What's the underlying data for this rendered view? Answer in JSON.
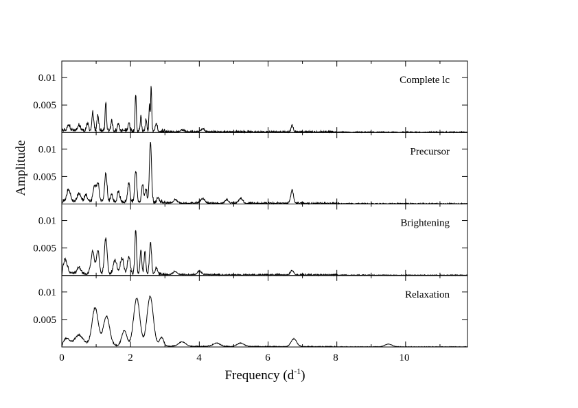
{
  "chart_data": {
    "type": "line",
    "xlabel": "Frequency (d",
    "xlabel_sup": "-1",
    "xlabel_close": ")",
    "ylabel": "Amplitude",
    "xlim": [
      0,
      11.8
    ],
    "ylim": [
      0,
      0.013
    ],
    "x_ticks": [
      0,
      2,
      4,
      6,
      8,
      10
    ],
    "x_tick_labels": [
      "0",
      "2",
      "4",
      "6",
      "8",
      "10"
    ],
    "y_ticks": [
      0.005,
      0.01
    ],
    "y_tick_labels": [
      "0.005",
      "0.01"
    ],
    "grid": false,
    "panels": [
      {
        "name": "Complete lc",
        "base": 0.0002,
        "noise": 0.0007,
        "peaks": [
          [
            0.2,
            0.001,
            0.04
          ],
          [
            0.5,
            0.0009,
            0.04
          ],
          [
            0.75,
            0.0012,
            0.03
          ],
          [
            0.9,
            0.0033,
            0.025
          ],
          [
            1.05,
            0.0028,
            0.025
          ],
          [
            1.28,
            0.0052,
            0.02
          ],
          [
            1.45,
            0.0018,
            0.025
          ],
          [
            1.65,
            0.0014,
            0.025
          ],
          [
            1.95,
            0.0014,
            0.025
          ],
          [
            2.15,
            0.0065,
            0.018
          ],
          [
            2.3,
            0.0025,
            0.02
          ],
          [
            2.45,
            0.0022,
            0.02
          ],
          [
            2.55,
            0.0048,
            0.015
          ],
          [
            2.6,
            0.0082,
            0.015
          ],
          [
            2.75,
            0.0015,
            0.025
          ],
          [
            3.5,
            0.0003,
            0.05
          ],
          [
            4.1,
            0.0005,
            0.05
          ],
          [
            6.7,
            0.0012,
            0.03
          ]
        ]
      },
      {
        "name": "Precursor",
        "base": 0.0003,
        "noise": 0.0007,
        "peaks": [
          [
            0.2,
            0.0022,
            0.05
          ],
          [
            0.5,
            0.0015,
            0.05
          ],
          [
            0.7,
            0.0012,
            0.04
          ],
          [
            0.95,
            0.003,
            0.04
          ],
          [
            1.05,
            0.0034,
            0.035
          ],
          [
            1.28,
            0.0052,
            0.035
          ],
          [
            1.45,
            0.0015,
            0.03
          ],
          [
            1.65,
            0.0018,
            0.035
          ],
          [
            1.95,
            0.0033,
            0.035
          ],
          [
            2.15,
            0.0057,
            0.03
          ],
          [
            2.35,
            0.0032,
            0.03
          ],
          [
            2.45,
            0.0025,
            0.025
          ],
          [
            2.58,
            0.0111,
            0.03
          ],
          [
            2.8,
            0.001,
            0.03
          ],
          [
            3.3,
            0.0006,
            0.05
          ],
          [
            4.1,
            0.0008,
            0.06
          ],
          [
            4.8,
            0.0006,
            0.05
          ],
          [
            5.2,
            0.0008,
            0.06
          ],
          [
            6.7,
            0.0023,
            0.04
          ]
        ]
      },
      {
        "name": "Brightening",
        "base": 0.0002,
        "noise": 0.0006,
        "peaks": [
          [
            0.1,
            0.0025,
            0.06
          ],
          [
            0.5,
            0.0012,
            0.05
          ],
          [
            0.9,
            0.004,
            0.05
          ],
          [
            1.05,
            0.0043,
            0.04
          ],
          [
            1.28,
            0.0064,
            0.04
          ],
          [
            1.55,
            0.0025,
            0.05
          ],
          [
            1.75,
            0.0028,
            0.05
          ],
          [
            1.95,
            0.0032,
            0.04
          ],
          [
            2.15,
            0.0081,
            0.025
          ],
          [
            2.3,
            0.0045,
            0.025
          ],
          [
            2.42,
            0.0043,
            0.025
          ],
          [
            2.58,
            0.0057,
            0.03
          ],
          [
            2.75,
            0.0012,
            0.03
          ],
          [
            3.3,
            0.0006,
            0.06
          ],
          [
            4.0,
            0.0006,
            0.06
          ],
          [
            6.7,
            0.0008,
            0.05
          ]
        ]
      },
      {
        "name": "Relaxation",
        "base": 0.0003,
        "noise": 0.0003,
        "peaks": [
          [
            0.15,
            0.0012,
            0.08
          ],
          [
            0.5,
            0.0018,
            0.12
          ],
          [
            0.97,
            0.0068,
            0.09
          ],
          [
            1.3,
            0.0053,
            0.09
          ],
          [
            1.82,
            0.0028,
            0.07
          ],
          [
            2.18,
            0.0086,
            0.09
          ],
          [
            2.57,
            0.009,
            0.09
          ],
          [
            2.9,
            0.0015,
            0.06
          ],
          [
            3.5,
            0.0008,
            0.1
          ],
          [
            4.5,
            0.0006,
            0.1
          ],
          [
            5.2,
            0.0006,
            0.1
          ],
          [
            6.75,
            0.0014,
            0.08
          ],
          [
            9.5,
            0.0005,
            0.1
          ]
        ]
      }
    ]
  }
}
